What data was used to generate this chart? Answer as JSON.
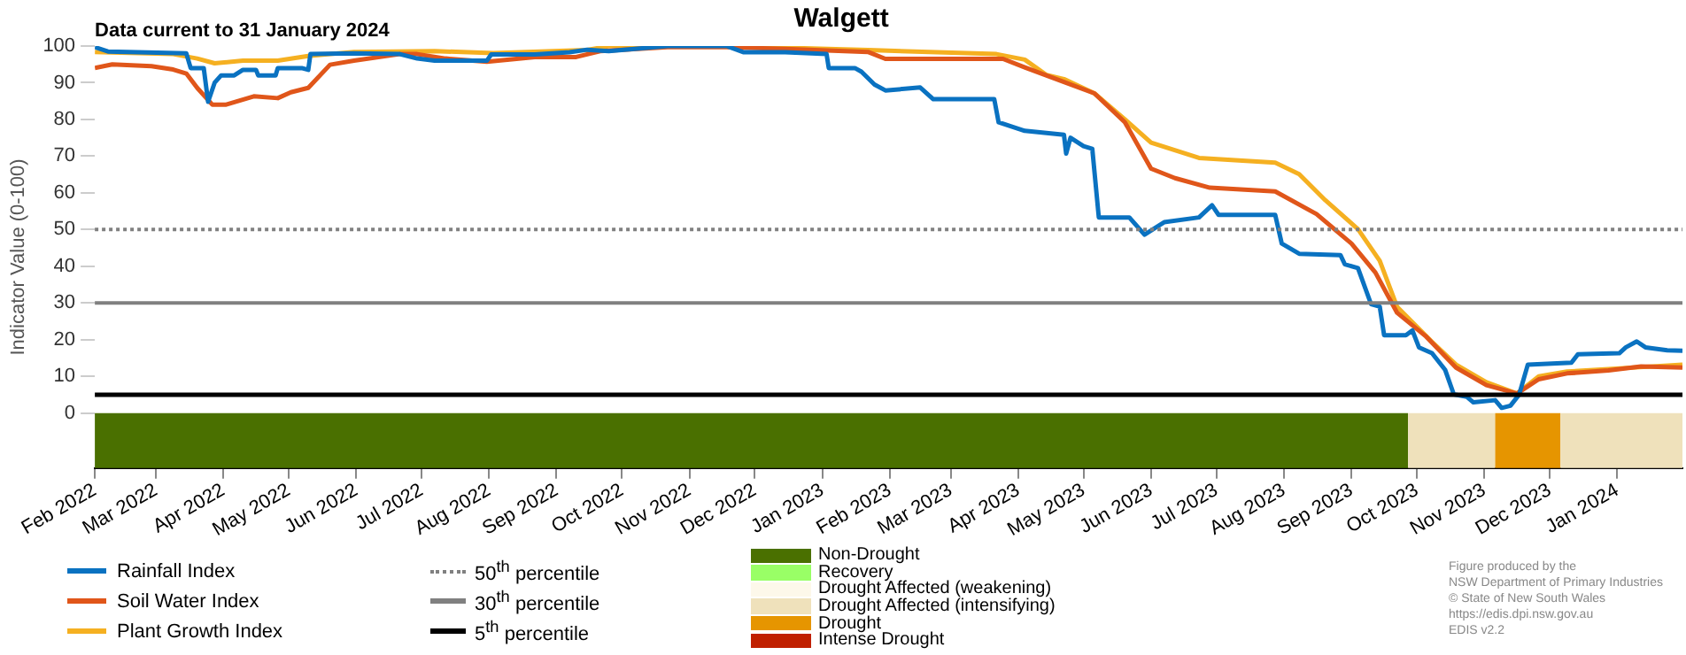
{
  "chart_data": [
    {
      "type": "line",
      "title": "Walgett",
      "subtitle": "Data current to 31 January 2024",
      "ylabel": "Indicator Value (0-100)",
      "xlim": [
        "2022-02-01",
        "2024-01-31"
      ],
      "xticks": [
        {
          "value": "2022-02-01",
          "label": "Feb 2022"
        },
        {
          "value": "2022-03-01",
          "label": "Mar 2022"
        },
        {
          "value": "2022-04-01",
          "label": "Apr 2022"
        },
        {
          "value": "2022-05-01",
          "label": "May 2022"
        },
        {
          "value": "2022-06-01",
          "label": "Jun 2022"
        },
        {
          "value": "2022-07-01",
          "label": "Jul 2022"
        },
        {
          "value": "2022-08-01",
          "label": "Aug 2022"
        },
        {
          "value": "2022-09-01",
          "label": "Sep 2022"
        },
        {
          "value": "2022-10-01",
          "label": "Oct 2022"
        },
        {
          "value": "2022-11-01",
          "label": "Nov 2022"
        },
        {
          "value": "2022-12-01",
          "label": "Dec 2022"
        },
        {
          "value": "2023-01-01",
          "label": "Jan 2023"
        },
        {
          "value": "2023-02-01",
          "label": "Feb 2023"
        },
        {
          "value": "2023-03-01",
          "label": "Mar 2023"
        },
        {
          "value": "2023-04-01",
          "label": "Apr 2023"
        },
        {
          "value": "2023-05-01",
          "label": "May 2023"
        },
        {
          "value": "2023-06-01",
          "label": "Jun 2023"
        },
        {
          "value": "2023-07-01",
          "label": "Jul 2023"
        },
        {
          "value": "2023-08-01",
          "label": "Aug 2023"
        },
        {
          "value": "2023-09-01",
          "label": "Sep 2023"
        },
        {
          "value": "2023-10-01",
          "label": "Oct 2023"
        },
        {
          "value": "2023-11-01",
          "label": "Nov 2023"
        },
        {
          "value": "2023-12-01",
          "label": "Dec 2023"
        },
        {
          "value": "2024-01-01",
          "label": "Jan 2024"
        }
      ],
      "ylim": [
        -15,
        100
      ],
      "yticks": [
        0,
        10,
        20,
        30,
        40,
        50,
        60,
        70,
        80,
        90,
        100
      ],
      "legend": "bottom",
      "series": [
        {
          "name": "Rainfall Index",
          "color": "#0a72c1",
          "x": [
            "2022-02-01",
            "2022-02-07",
            "2022-03-15",
            "2022-03-17",
            "2022-03-23",
            "2022-03-25",
            "2022-03-28",
            "2022-03-31",
            "2022-04-06",
            "2022-04-10",
            "2022-04-16",
            "2022-04-17",
            "2022-04-25",
            "2022-04-26",
            "2022-05-07",
            "2022-05-10",
            "2022-05-11",
            "2022-05-31",
            "2022-06-21",
            "2022-06-29",
            "2022-07-07",
            "2022-07-31",
            "2022-08-02",
            "2022-08-22",
            "2022-09-07",
            "2022-09-15",
            "2022-09-25",
            "2022-10-22",
            "2022-11-18",
            "2022-11-26",
            "2022-12-15",
            "2023-01-03",
            "2023-01-04",
            "2023-01-16",
            "2023-01-19",
            "2023-01-25",
            "2023-01-30",
            "2023-02-15",
            "2023-02-21",
            "2023-03-21",
            "2023-03-23",
            "2023-04-04",
            "2023-04-22",
            "2023-04-23",
            "2023-04-25",
            "2023-05-01",
            "2023-05-05",
            "2023-05-08",
            "2023-05-22",
            "2023-05-29",
            "2023-06-07",
            "2023-06-23",
            "2023-06-29",
            "2023-07-02",
            "2023-07-28",
            "2023-07-31",
            "2023-08-08",
            "2023-08-27",
            "2023-08-29",
            "2023-09-04",
            "2023-09-10",
            "2023-09-14",
            "2023-09-16",
            "2023-09-26",
            "2023-09-29",
            "2023-10-02",
            "2023-10-08",
            "2023-10-14",
            "2023-10-18",
            "2023-10-24",
            "2023-10-27",
            "2023-11-06",
            "2023-11-09",
            "2023-11-13",
            "2023-11-17",
            "2023-11-21",
            "2023-12-11",
            "2023-12-14",
            "2024-01-02",
            "2024-01-05",
            "2024-01-10",
            "2024-01-14",
            "2024-01-24",
            "2024-01-31"
          ],
          "values": [
            99.7,
            98.5,
            98,
            94,
            94,
            84.8,
            90,
            92,
            92,
            93.5,
            93.5,
            92,
            92,
            94,
            94,
            93.5,
            97.8,
            98,
            97.8,
            96.6,
            96,
            96,
            97.7,
            97.7,
            98.3,
            99,
            98.6,
            100,
            100,
            98.3,
            98.3,
            97.8,
            94,
            94,
            93,
            89.5,
            87.9,
            88.7,
            85.5,
            85.5,
            79.2,
            76.9,
            75.8,
            70.7,
            75,
            72.7,
            72,
            53.3,
            53.3,
            48.6,
            52,
            53.3,
            56.6,
            54,
            54,
            46.2,
            43.4,
            43,
            40.5,
            39.5,
            29.7,
            29,
            21.2,
            21.2,
            22.5,
            17.9,
            16.3,
            11.8,
            5.1,
            4.4,
            2.9,
            3.5,
            1.4,
            2,
            5,
            13.2,
            13.7,
            16,
            16.3,
            17.9,
            19.5,
            17.9,
            17.1,
            17
          ]
        },
        {
          "name": "Soil Water Index",
          "color": "#e0561a",
          "x": [
            "2022-02-01",
            "2022-02-09",
            "2022-02-27",
            "2022-03-09",
            "2022-03-15",
            "2022-03-20",
            "2022-03-27",
            "2022-04-02",
            "2022-04-15",
            "2022-04-26",
            "2022-05-02",
            "2022-05-10",
            "2022-05-20",
            "2022-05-31",
            "2022-06-21",
            "2022-06-29",
            "2022-07-12",
            "2022-07-31",
            "2022-08-22",
            "2022-09-10",
            "2022-09-21",
            "2022-10-22",
            "2022-11-18",
            "2022-12-15",
            "2023-01-22",
            "2023-01-30",
            "2023-03-25",
            "2023-04-04",
            "2023-04-22",
            "2023-05-06",
            "2023-05-20",
            "2023-06-01",
            "2023-06-12",
            "2023-06-28",
            "2023-07-28",
            "2023-08-16",
            "2023-09-01",
            "2023-09-12",
            "2023-09-22",
            "2023-10-05",
            "2023-10-19",
            "2023-11-02",
            "2023-11-16",
            "2023-11-26",
            "2023-12-09",
            "2023-12-28",
            "2024-01-12",
            "2024-01-31"
          ],
          "values": [
            94,
            95,
            94.5,
            93.6,
            92.5,
            88.6,
            84,
            84,
            86.3,
            85.8,
            87.4,
            88.6,
            94.9,
            96,
            97.8,
            97.8,
            96.6,
            95.7,
            97,
            97,
            98.6,
            99.7,
            99.7,
            99.2,
            98.4,
            96.5,
            96.5,
            94.2,
            90.2,
            87.1,
            79.2,
            66.6,
            64,
            61.4,
            60.4,
            54.2,
            46.2,
            38.3,
            27.3,
            21,
            12.4,
            7.6,
            5.3,
            9.2,
            10.8,
            11.6,
            12.7,
            12.4
          ]
        },
        {
          "name": "Plant Growth Index",
          "color": "#f5b021",
          "x": [
            "2022-02-01",
            "2022-03-09",
            "2022-03-20",
            "2022-03-28",
            "2022-04-10",
            "2022-04-26",
            "2022-05-10",
            "2022-05-31",
            "2022-07-07",
            "2022-08-03",
            "2022-09-15",
            "2022-09-25",
            "2022-11-18",
            "2023-01-22",
            "2023-03-22",
            "2023-04-04",
            "2023-04-14",
            "2023-04-22",
            "2023-05-06",
            "2023-05-20",
            "2023-06-01",
            "2023-06-23",
            "2023-07-28",
            "2023-08-08",
            "2023-08-20",
            "2023-09-04",
            "2023-09-14",
            "2023-09-22",
            "2023-10-08",
            "2023-10-19",
            "2023-11-02",
            "2023-11-16",
            "2023-11-26",
            "2023-12-09",
            "2023-12-28",
            "2024-01-31"
          ],
          "values": [
            98.4,
            97.8,
            96.6,
            95.3,
            96,
            96,
            97.3,
            98.4,
            98.6,
            98.1,
            98.9,
            100,
            100,
            98.9,
            97.8,
            96.3,
            92.1,
            91,
            87.1,
            80,
            73.7,
            69.5,
            68.2,
            65.1,
            58,
            50.1,
            41.5,
            28.9,
            19.4,
            13.2,
            8.4,
            5.3,
            10,
            11.3,
            12,
            13.2
          ]
        }
      ],
      "ref_lines": [
        {
          "axis": "y",
          "value": 50,
          "label": "50$^{th}$ percentile",
          "color": "#808080",
          "line_style": "dotted"
        },
        {
          "axis": "y",
          "value": 30,
          "label": "30$^{th}$ percentile",
          "color": "#808080",
          "line_style": "solid"
        },
        {
          "axis": "y",
          "value": 5,
          "label": "5$^{th}$ percentile",
          "color": "#000000",
          "line_style": "solid"
        }
      ],
      "bands": [
        {
          "axis": "x",
          "from": "2022-02-01",
          "to": "2023-09-27",
          "color": "#4a7000"
        },
        {
          "axis": "x",
          "from": "2023-09-27",
          "to": "2023-11-06",
          "color": "#efe1bb"
        },
        {
          "axis": "x",
          "from": "2023-11-06",
          "to": "2023-12-06",
          "color": "#e69500"
        },
        {
          "axis": "x",
          "from": "2023-12-06",
          "to": "2024-01-31",
          "color": "#efe1bb"
        }
      ],
      "annotations": [
        "Figure produced by the",
        "NSW Department of Primary Industries",
        "© State of New South Wales",
        "https://edis.dpi.nsw.gov.au",
        "EDIS v2.2"
      ]
    },
    {
      "type": "other",
      "categories": [
        "Non-Drought",
        "Recovery",
        "Drought Affected (weakening)",
        "Drought Affected (intensifying)",
        "Drought",
        "Intense Drought"
      ],
      "colors": [
        "#4a7000",
        "#99ff66",
        "#fdf8ea",
        "#efe1bb",
        "#e69500",
        "#c02000"
      ]
    }
  ]
}
